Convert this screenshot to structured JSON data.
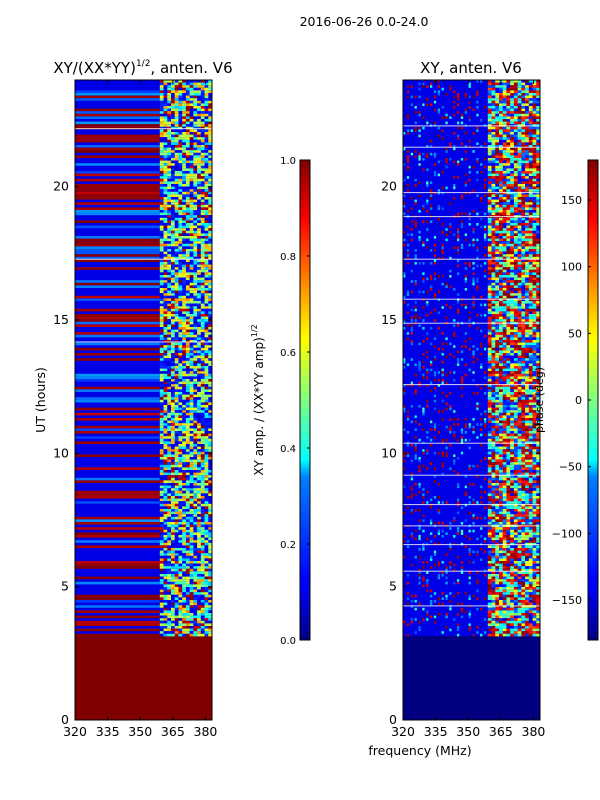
{
  "figure": {
    "suptitle": "2016-06-26 0.0-24.0",
    "xlabel": "frequency (MHz)"
  },
  "chart_data": [
    {
      "type": "heatmap",
      "title_main": "XY/(XX*YY)",
      "title_exp": "1/2",
      "title_tail": ", anten. V6",
      "xlabel": "",
      "ylabel": "UT (hours)",
      "xlim": [
        320,
        383
      ],
      "ylim": [
        0,
        24
      ],
      "xticks": [
        320,
        335,
        350,
        365,
        380
      ],
      "yticks": [
        0,
        5,
        10,
        15,
        20
      ],
      "colorbar": {
        "label_main": "XY amp. / (XX*YY amp)",
        "label_exp": "1/2",
        "range": [
          0.0,
          1.0
        ],
        "ticks": [
          "0.0",
          "0.2",
          "0.4",
          "0.6",
          "0.8",
          "1.0"
        ]
      },
      "colormap": "jet",
      "data_start_hour": 3.15,
      "low_band_freq_range": [
        320,
        359
      ],
      "high_band_freq_range": [
        359,
        383
      ],
      "notes": "Normalized cross-correlation amplitude vs frequency and UT; saturated (1.0) below 3.15 h"
    },
    {
      "type": "heatmap",
      "title": "XY, anten. V6",
      "xlabel": "frequency (MHz)",
      "ylabel": "",
      "xlim": [
        320,
        383
      ],
      "ylim": [
        0,
        24
      ],
      "xticks": [
        320,
        335,
        350,
        365,
        380
      ],
      "yticks": [
        0,
        5,
        10,
        15,
        20
      ],
      "colorbar": {
        "label": "phase (deg)",
        "range": [
          -180,
          180
        ],
        "ticks": [
          "150",
          "100",
          "50",
          "0",
          "−50",
          "−100",
          "−150"
        ]
      },
      "colormap": "jet",
      "data_start_hour": 3.15,
      "notes": "Cross-correlation phase vs frequency and UT; -180 below 3.15 h"
    }
  ]
}
